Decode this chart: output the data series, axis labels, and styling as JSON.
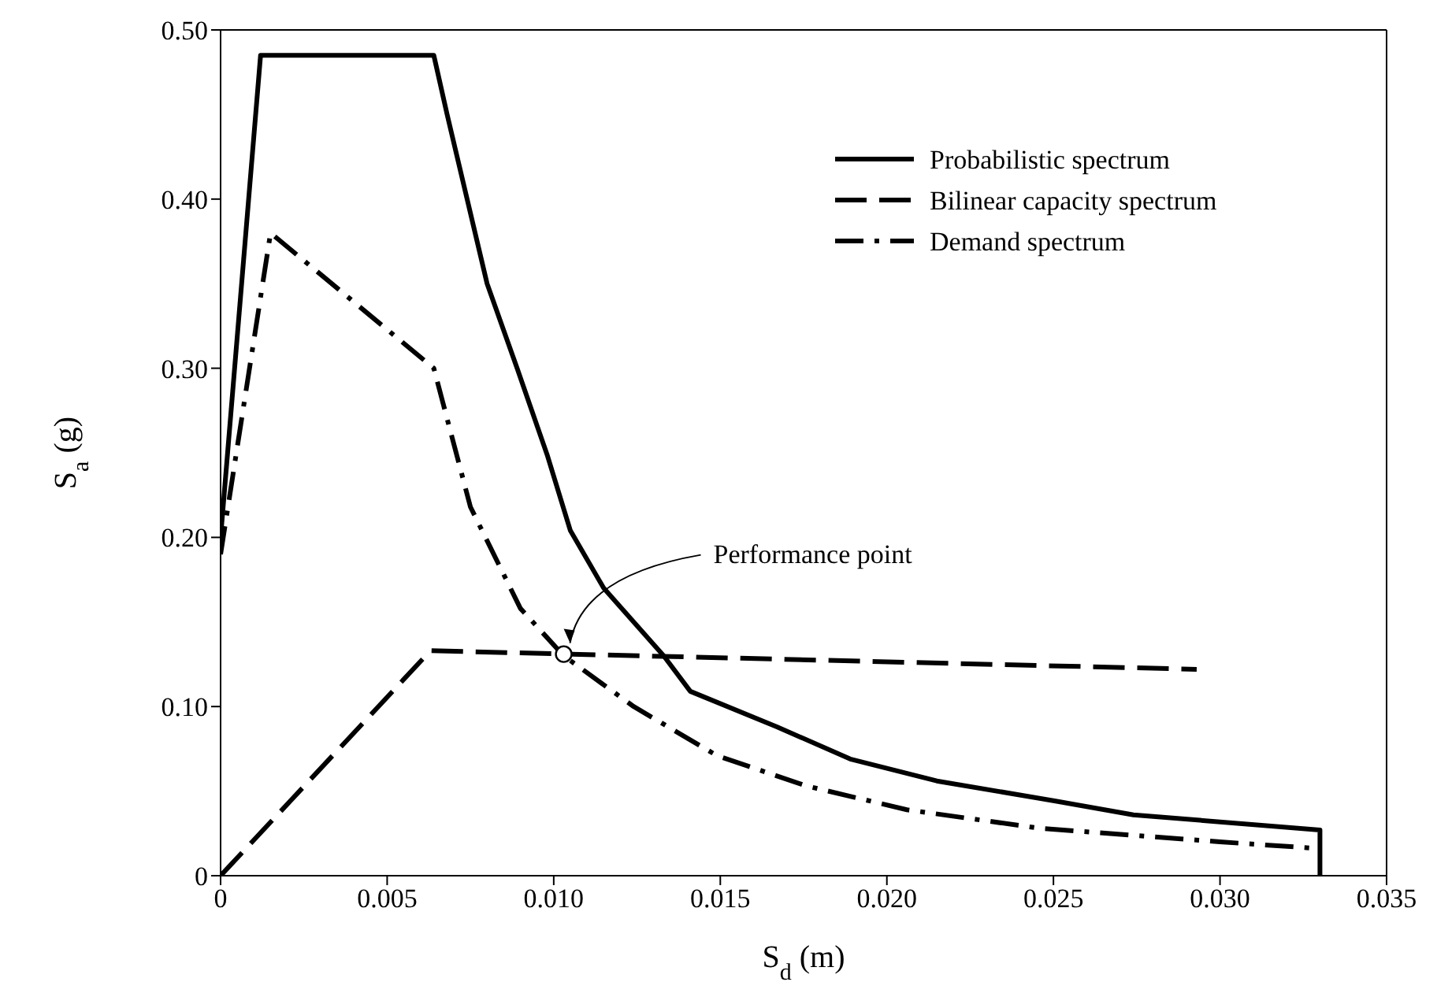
{
  "chart_data": {
    "type": "line",
    "xlabel": "S$_{d}$ (m)",
    "ylabel": "S$_{a}$ (g)",
    "xlim": [
      0,
      0.035
    ],
    "ylim": [
      0,
      0.5
    ],
    "xticks": [
      0,
      {
        "value": 0.005,
        "label": "0.005"
      },
      {
        "value": 0.01,
        "label": "0.010"
      },
      {
        "value": 0.015,
        "label": "0.015"
      },
      {
        "value": 0.02,
        "label": "0.020"
      },
      {
        "value": 0.025,
        "label": "0.025"
      },
      {
        "value": 0.03,
        "label": "0.030"
      },
      {
        "value": 0.035,
        "label": "0.035"
      }
    ],
    "yticks": [
      0,
      {
        "value": 0.1,
        "label": "0.10"
      },
      {
        "value": 0.2,
        "label": "0.20"
      },
      {
        "value": 0.3,
        "label": "0.30"
      },
      {
        "value": 0.4,
        "label": "0.40"
      },
      {
        "value": 0.5,
        "label": "0.50"
      }
    ],
    "grid": false,
    "legend": "top right",
    "marker": "none",
    "series": [
      {
        "name": "Probabilistic spectrum",
        "color": "#000000",
        "line_style": "solid",
        "x": [
          0,
          0.0012,
          0.0064,
          0.0068,
          0.008,
          0.0089,
          0.0098,
          0.0105,
          0.0115,
          0.0133,
          0.0141,
          0.0167,
          0.0189,
          0.0215,
          0.0251,
          0.0274,
          0.033,
          0.033
        ],
        "values": [
          0.2,
          0.485,
          0.485,
          0.45,
          0.35,
          0.3,
          0.249,
          0.204,
          0.17,
          0.13,
          0.109,
          0.088,
          0.069,
          0.056,
          0.044,
          0.036,
          0.027,
          0
        ]
      },
      {
        "name": "Bilinear capacity spectrum",
        "color": "#000000",
        "line_style": "dashed",
        "x": [
          0,
          0.0063,
          0.0293
        ],
        "values": [
          0,
          0.133,
          0.122
        ]
      },
      {
        "name": "Demand spectrum",
        "color": "#000000",
        "line_style": "dashdot",
        "x": [
          0,
          0.0015,
          0.0064,
          0.0075,
          0.009,
          0.0103,
          0.0124,
          0.0149,
          0.0176,
          0.0206,
          0.0246,
          0.03,
          0.033
        ],
        "values": [
          0.19,
          0.38,
          0.3,
          0.218,
          0.158,
          0.13,
          0.1,
          0.071,
          0.053,
          0.039,
          0.028,
          0.02,
          0.016
        ]
      },
      {
        "type": "scatter",
        "color": "#ffffff",
        "marker": "circle",
        "x": [
          0.0103
        ],
        "values": [
          0.131
        ]
      }
    ],
    "annotations": [
      {
        "text": "Performance point",
        "x": 0.0103,
        "y": 0.131
      }
    ]
  }
}
